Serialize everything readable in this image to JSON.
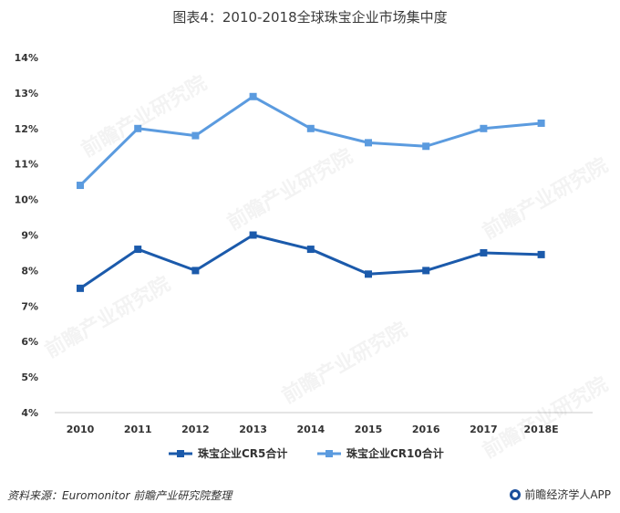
{
  "title": "图表4：2010-2018全球珠宝企业市场集中度",
  "footer": {
    "source": "资料来源：Euromonitor 前瞻产业研究院整理",
    "brand": "前瞻经济学人APP"
  },
  "chart_data": {
    "type": "line",
    "categories": [
      "2010",
      "2011",
      "2012",
      "2013",
      "2014",
      "2015",
      "2016",
      "2017",
      "2018E"
    ],
    "series": [
      {
        "name": "珠宝企业CR5合计",
        "color": "#1b5aab",
        "values": [
          7.5,
          8.6,
          8.0,
          9.0,
          8.6,
          7.9,
          8.0,
          8.5,
          8.45
        ]
      },
      {
        "name": "珠宝企业CR10合计",
        "color": "#5b9bdf",
        "values": [
          10.4,
          12.0,
          11.8,
          12.9,
          12.0,
          11.6,
          11.5,
          12.0,
          12.15
        ]
      }
    ],
    "ylim": [
      4,
      14
    ],
    "yticks": [
      "4%",
      "5%",
      "6%",
      "7%",
      "8%",
      "9%",
      "10%",
      "11%",
      "12%",
      "13%",
      "14%"
    ],
    "ytick_values": [
      4,
      5,
      6,
      7,
      8,
      9,
      10,
      11,
      12,
      13,
      14
    ],
    "grid": false,
    "legend_position": "bottom"
  }
}
